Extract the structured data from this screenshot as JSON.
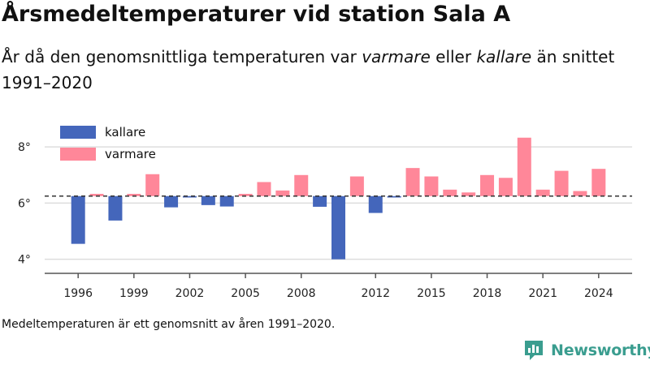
{
  "header": {
    "title": "Årsmedeltemperaturer vid station Sala A",
    "subtitle_parts": {
      "p1": "År då den genomsnittliga temperaturen var ",
      "p2": "varmare",
      "p3": " eller ",
      "p4": "kallare",
      "p5": " än snittet 1991–2020"
    }
  },
  "footnote": "Medeltemperaturen är ett genomsnitt av åren 1991–2020.",
  "brand": {
    "name": "Newsworthy",
    "icon": "newsworthy-logo-icon",
    "color": "#3a9d8f"
  },
  "chart_data": {
    "type": "bar",
    "baseline": 6.25,
    "years": [
      1996,
      1997,
      1998,
      1999,
      2000,
      2001,
      2002,
      2003,
      2004,
      2005,
      2006,
      2007,
      2008,
      2009,
      2010,
      2011,
      2012,
      2013,
      2014,
      2015,
      2016,
      2017,
      2018,
      2019,
      2020,
      2021,
      2022,
      2023,
      2024
    ],
    "values": [
      4.55,
      6.33,
      5.38,
      6.33,
      7.03,
      5.85,
      6.2,
      5.93,
      5.88,
      6.33,
      6.75,
      6.45,
      7.0,
      5.87,
      4.0,
      6.95,
      5.65,
      6.2,
      7.25,
      6.95,
      6.48,
      6.38,
      7.0,
      6.9,
      8.33,
      6.48,
      7.15,
      6.43,
      7.22
    ],
    "xticks": [
      1996,
      1999,
      2002,
      2005,
      2008,
      2012,
      2015,
      2018,
      2021,
      2024
    ],
    "ytick_labels": [
      "4°",
      "6°",
      "8°"
    ],
    "yticks": [
      4,
      6,
      8
    ],
    "ylim": [
      3.5,
      8.9
    ],
    "xlim": [
      1994.2,
      2025.8
    ],
    "legend": [
      {
        "label": "kallare",
        "color": "#4466bb"
      },
      {
        "label": "varmare",
        "color": "#ff8799"
      }
    ],
    "legend_position": "top-left",
    "grid": true,
    "colors": {
      "colder": "#4466bb",
      "warmer": "#ff8799",
      "grid": "#dddddd",
      "axis": "#555555",
      "baseline": "#333333"
    }
  }
}
